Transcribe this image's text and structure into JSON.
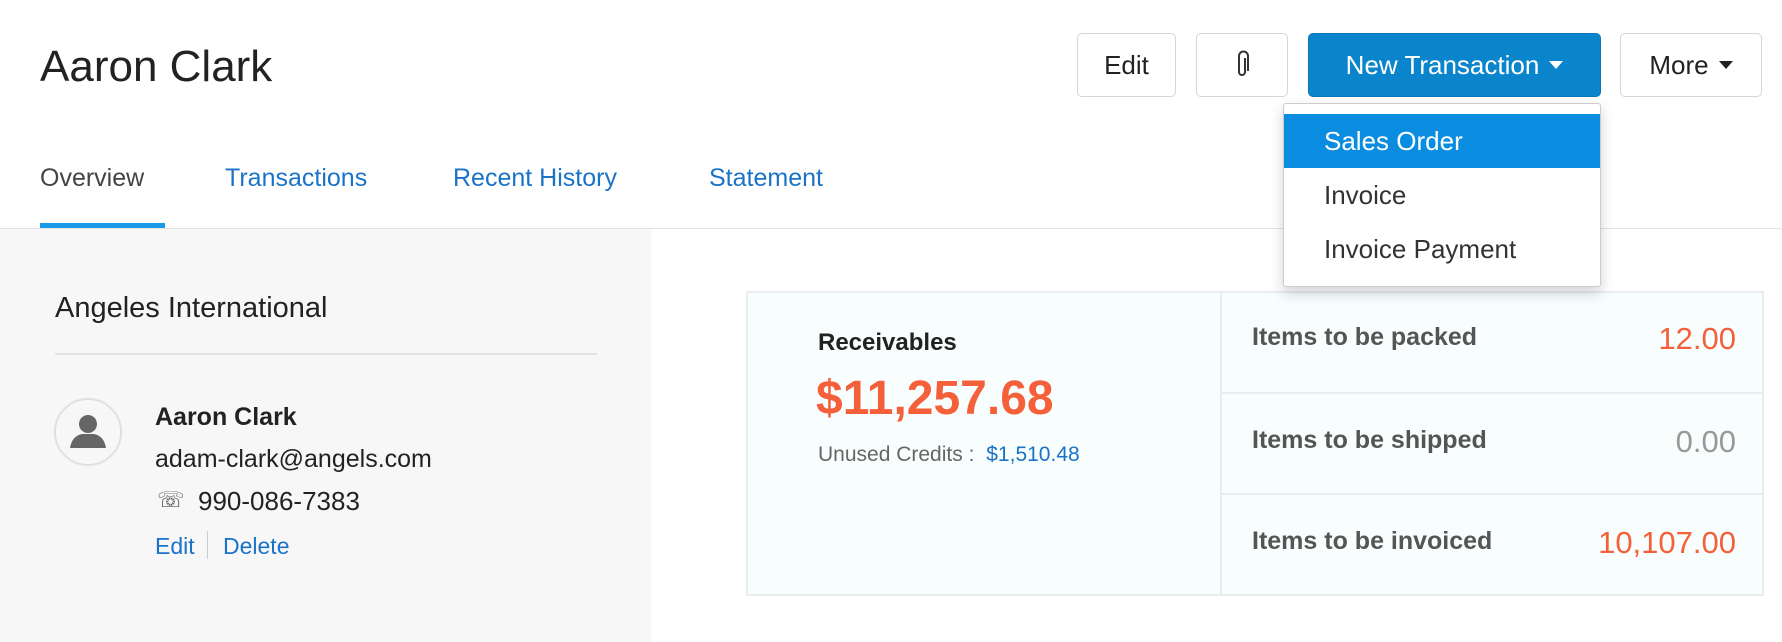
{
  "header": {
    "title": "Aaron Clark",
    "edit_label": "Edit",
    "attach_icon": "paperclip-icon",
    "new_transaction_label": "New Transaction",
    "more_label": "More"
  },
  "dropdown": {
    "items": [
      "Sales Order",
      "Invoice",
      "Invoice Payment"
    ],
    "active": "Sales Order"
  },
  "tabs": [
    "Overview",
    "Transactions",
    "Recent History",
    "Statement"
  ],
  "active_tab": "Overview",
  "contact": {
    "company": "Angeles International",
    "name": "Aaron Clark",
    "email": "adam-clark@angels.com",
    "phone": "990-086-7383",
    "edit_label": "Edit",
    "delete_label": "Delete"
  },
  "summary": {
    "receivables_label": "Receivables",
    "receivables_amount": "$11,257.68",
    "unused_credits_label": "Unused Credits :",
    "unused_credits_amount": "$1,510.48",
    "rows": [
      {
        "label": "Items to be packed",
        "value": "12.00",
        "color": "#f5603a"
      },
      {
        "label": "Items to be shipped",
        "value": "0.00",
        "color": "#999999"
      },
      {
        "label": "Items to be invoiced",
        "value": "10,107.00",
        "color": "#f5603a"
      }
    ]
  },
  "colors": {
    "accent": "#0a85cc",
    "amount": "#f5603a",
    "link": "#1a73c7"
  }
}
